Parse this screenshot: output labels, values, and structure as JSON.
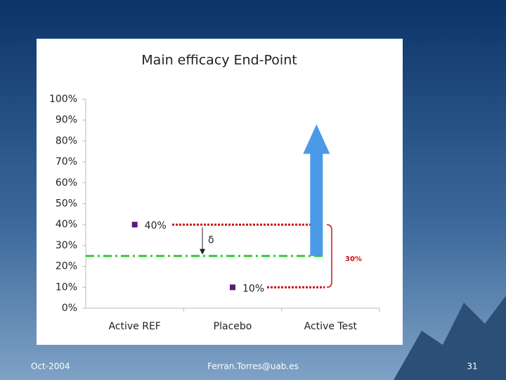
{
  "footer": {
    "date": "Oct-2004",
    "email": "Ferran.Torres@uab.es",
    "page": "31"
  },
  "chart_data": {
    "type": "point",
    "title": "Main efficacy End-Point",
    "categories": [
      "Active REF",
      "Placebo",
      "Active Test"
    ],
    "values": [
      40,
      10,
      null
    ],
    "value_labels": [
      "40%",
      "10%",
      null
    ],
    "color": "#5a1a7a",
    "ylim": [
      0,
      100
    ],
    "yticks": [
      {
        "value": 0,
        "label": "0%"
      },
      {
        "value": 10,
        "label": "10%"
      },
      {
        "value": 20,
        "label": "20%"
      },
      {
        "value": 30,
        "label": "30%"
      },
      {
        "value": 40,
        "label": "40%"
      },
      {
        "value": 50,
        "label": "50%"
      },
      {
        "value": 60,
        "label": "60%"
      },
      {
        "value": 70,
        "label": "70%"
      },
      {
        "value": 80,
        "label": "80%"
      },
      {
        "value": 90,
        "label": "90%"
      },
      {
        "value": 100,
        "label": "100%"
      }
    ],
    "margin_line": {
      "value": 25,
      "color": "#33cc33"
    },
    "arrow": {
      "from": 25,
      "to": 88,
      "color": "#4a9ae8"
    },
    "delta_label": "δ",
    "difference_label": "30%",
    "guide_color": "#cc1111"
  }
}
